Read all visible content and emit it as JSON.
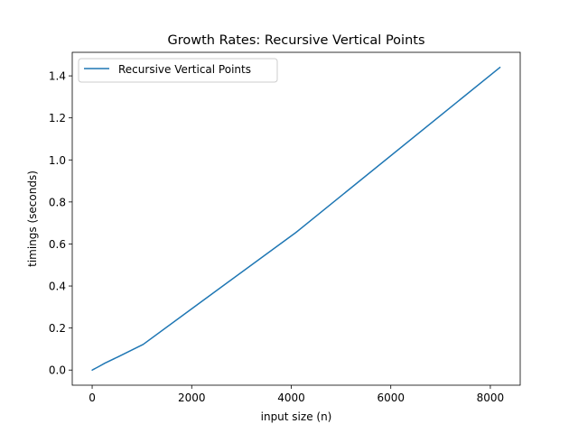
{
  "chart_data": {
    "type": "line",
    "title": "Growth Rates: Recursive Vertical Points",
    "xlabel": "input size (n)",
    "ylabel": "timings (seconds)",
    "xlim": [
      -400,
      8600
    ],
    "ylim": [
      -0.072,
      1.512
    ],
    "x_ticks": [
      0,
      2000,
      4000,
      6000,
      8000
    ],
    "x_tick_labels": [
      "0",
      "2000",
      "4000",
      "6000",
      "8000"
    ],
    "y_ticks": [
      0.0,
      0.2,
      0.4,
      0.6,
      0.8,
      1.0,
      1.2,
      1.4
    ],
    "y_tick_labels": [
      "0.0",
      "0.2",
      "0.4",
      "0.6",
      "0.8",
      "1.0",
      "1.2",
      "1.4"
    ],
    "grid": false,
    "legend_position": "top-left",
    "series": [
      {
        "name": "Recursive Vertical Points",
        "color": "#1f77b4",
        "x": [
          2,
          4,
          8,
          16,
          32,
          64,
          128,
          256,
          512,
          1024,
          2048,
          4096,
          8192
        ],
        "y": [
          0.0,
          0.0005,
          0.001,
          0.002,
          0.004,
          0.008,
          0.016,
          0.033,
          0.062,
          0.122,
          0.3,
          0.655,
          1.44
        ]
      }
    ]
  }
}
